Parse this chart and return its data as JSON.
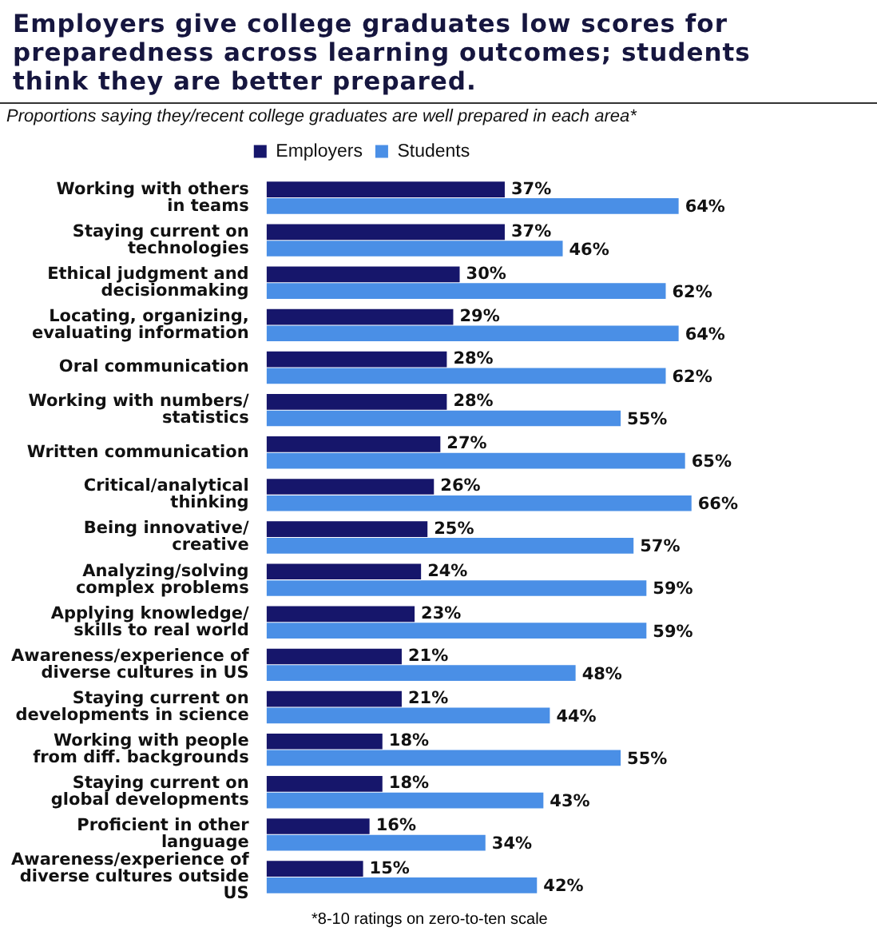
{
  "chart_data": {
    "type": "bar",
    "orientation": "horizontal",
    "title": "Employers give college graduates low scores for preparedness across learning outcomes; students think they are better prepared.",
    "subtitle": "Proportions saying they/recent college graduates are well prepared in each area*",
    "categories": [
      "Working with others\nin teams",
      "Staying current on\ntechnologies",
      "Ethical judgment and\ndecisionmaking",
      "Locating, organizing,\nevaluating information",
      "Oral communication",
      "Working with numbers/\nstatistics",
      "Written communication",
      "Critical/analytical\nthinking",
      "Being innovative/\ncreative",
      "Analyzing/solving\ncomplex problems",
      "Applying knowledge/\nskills to real world",
      "Awareness/experience of\ndiverse cultures in US",
      "Staying current on\ndevelopments in science",
      "Working with people\nfrom diff. backgrounds",
      "Staying current on\nglobal developments",
      "Proficient in other\nlanguage",
      "Awareness/experience of\ndiverse cultures outside\nUS"
    ],
    "series": [
      {
        "name": "Employers",
        "color": "#16166b",
        "values": [
          37,
          37,
          30,
          29,
          28,
          28,
          27,
          26,
          25,
          24,
          23,
          21,
          21,
          18,
          18,
          16,
          15
        ],
        "value_labels": [
          "37%",
          "37%",
          "30%",
          "29%",
          "28%",
          "28%",
          "27%",
          "26%",
          "25%",
          "24%",
          "23%",
          "21%",
          "21%",
          "18%",
          "18%",
          "16%",
          "15%"
        ]
      },
      {
        "name": "Students",
        "color": "#4a8fe6",
        "values": [
          64,
          46,
          62,
          64,
          62,
          55,
          65,
          66,
          57,
          59,
          59,
          48,
          44,
          55,
          43,
          34,
          42
        ],
        "value_labels": [
          "64%",
          "46%",
          "62%",
          "64%",
          "62%",
          "55%",
          "65%",
          "66%",
          "57%",
          "59%",
          "59%",
          "48%",
          "44%",
          "55%",
          "43%",
          "34%",
          "42%"
        ]
      }
    ],
    "legend": "top",
    "grid": false,
    "annotations": [
      "*8-10 ratings on zero-to-ten scale"
    ]
  }
}
